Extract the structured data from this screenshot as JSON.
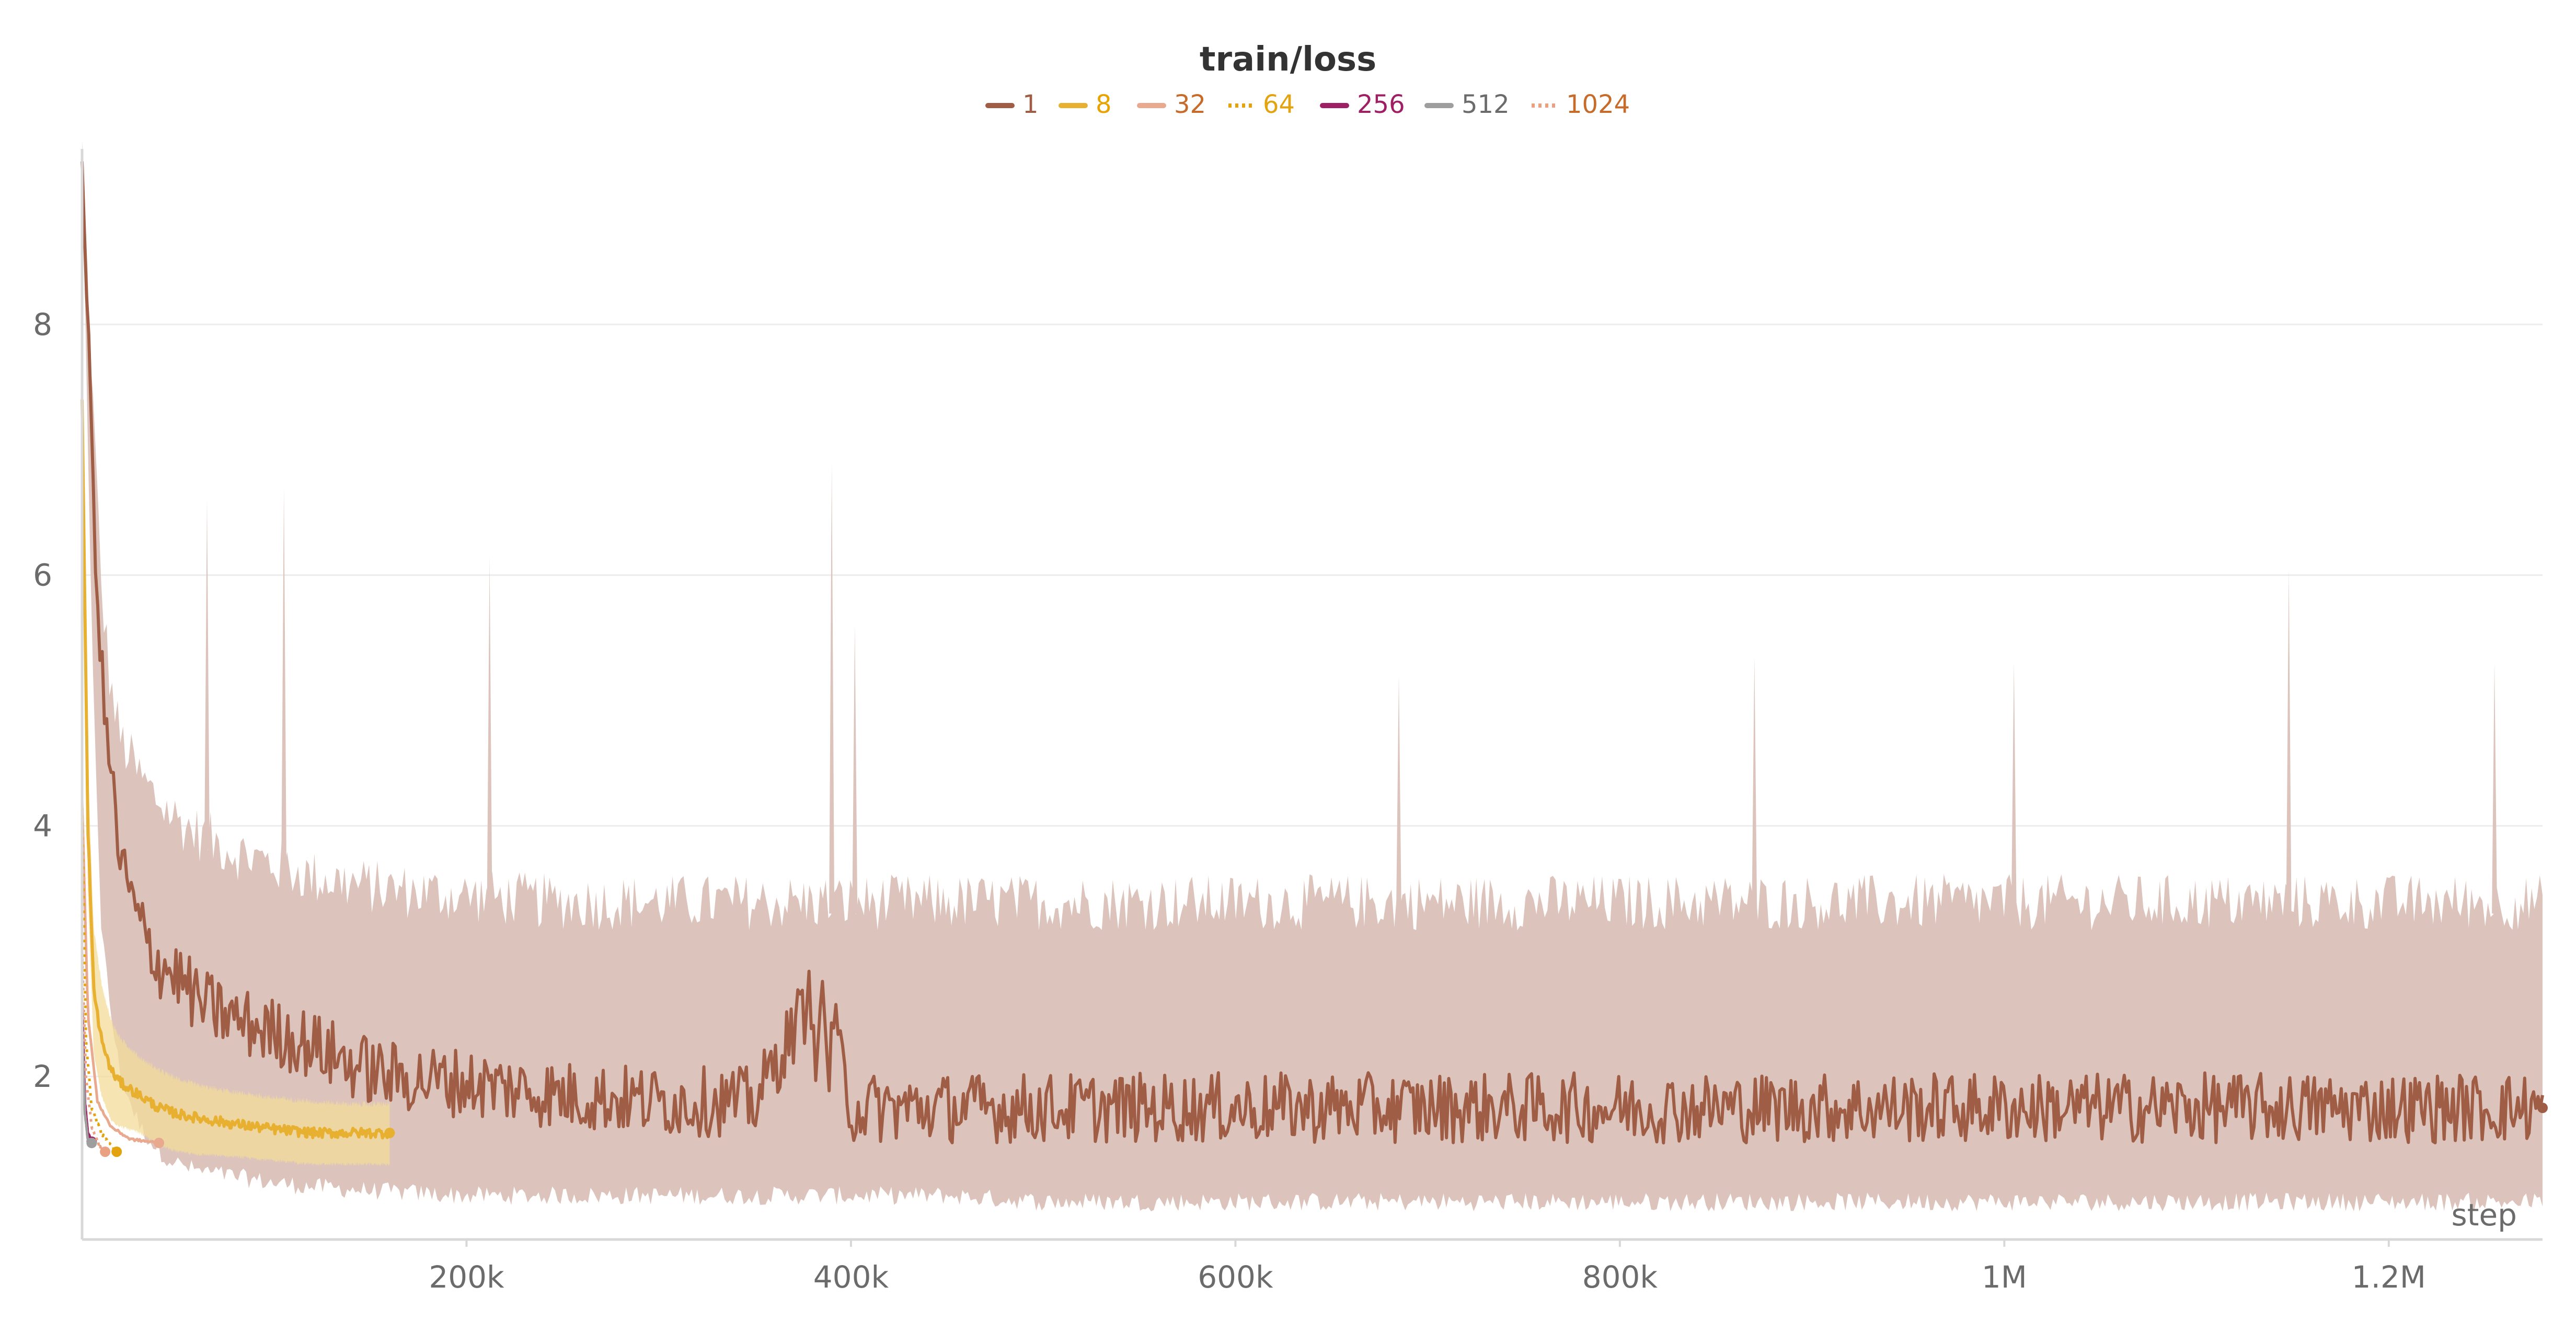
{
  "chart_data": {
    "type": "line",
    "title": "train/loss",
    "xlabel": "step",
    "ylabel": "",
    "xlim": [
      0,
      1280000
    ],
    "ylim": [
      0.7,
      9.4
    ],
    "x_ticks": [
      200000,
      400000,
      600000,
      800000,
      1000000,
      1200000
    ],
    "x_tick_labels": [
      "200k",
      "400k",
      "600k",
      "800k",
      "1M",
      "1.2M"
    ],
    "y_ticks": [
      2,
      4,
      6,
      8
    ],
    "y_tick_labels": [
      "2",
      "4",
      "6",
      "8"
    ],
    "grid": "horizontal",
    "legend": "top-center",
    "series": [
      {
        "name": "1",
        "color": "#a05d45",
        "dash": "solid",
        "band_color": "#dcc4bc",
        "x": [
          0,
          5000,
          10000,
          15000,
          20000,
          30000,
          40000,
          50000,
          60000,
          80000,
          100000,
          120000,
          140000,
          160000,
          200000,
          250000,
          300000,
          350000,
          385000,
          400000,
          450000,
          500000,
          600000,
          700000,
          800000,
          900000,
          1000000,
          1100000,
          1200000,
          1280000
        ],
        "y": [
          9.3,
          7.0,
          5.2,
          4.4,
          3.7,
          3.2,
          2.9,
          2.8,
          2.6,
          2.45,
          2.35,
          2.25,
          2.1,
          2.0,
          1.95,
          1.85,
          1.8,
          1.8,
          2.8,
          1.75,
          1.75,
          1.75,
          1.75,
          1.75,
          1.75,
          1.75,
          1.75,
          1.75,
          1.75,
          1.75
        ],
        "band_upper": [
          9.3,
          7.5,
          5.8,
          5.0,
          4.6,
          4.3,
          4.1,
          3.95,
          3.85,
          3.7,
          3.6,
          3.5,
          3.45,
          3.4,
          3.35,
          3.3,
          3.3,
          3.3,
          3.3,
          3.3,
          3.3,
          3.3,
          3.3,
          3.3,
          3.3,
          3.3,
          3.3,
          3.3,
          3.3,
          3.3
        ],
        "band_lower": [
          9.3,
          5.5,
          3.2,
          2.5,
          2.0,
          1.6,
          1.4,
          1.3,
          1.25,
          1.2,
          1.15,
          1.12,
          1.1,
          1.08,
          1.05,
          1.05,
          1.05,
          1.05,
          1.05,
          1.05,
          1.05,
          1.0,
          1.0,
          1.0,
          1.0,
          1.0,
          1.0,
          1.0,
          1.0,
          1.0
        ],
        "spikes": [
          [
            65000,
            6.6
          ],
          [
            105000,
            6.7
          ],
          [
            212000,
            6.15
          ],
          [
            390000,
            6.9
          ],
          [
            402000,
            5.6
          ],
          [
            685000,
            5.2
          ],
          [
            870000,
            5.35
          ],
          [
            1005000,
            5.3
          ],
          [
            1148000,
            6.05
          ],
          [
            1255000,
            5.3
          ]
        ]
      },
      {
        "name": "8",
        "color": "#e8b030",
        "dash": "solid",
        "band_color": "#f3dc9a",
        "x": [
          0,
          3000,
          6000,
          10000,
          15000,
          20000,
          30000,
          40000,
          50000,
          60000,
          80000,
          100000,
          120000,
          140000,
          160000
        ],
        "y": [
          7.4,
          4.0,
          2.7,
          2.3,
          2.05,
          1.95,
          1.85,
          1.75,
          1.7,
          1.67,
          1.62,
          1.58,
          1.55,
          1.55,
          1.55
        ],
        "band_upper": [
          7.4,
          4.5,
          3.2,
          2.75,
          2.45,
          2.3,
          2.15,
          2.05,
          1.98,
          1.93,
          1.87,
          1.83,
          1.8,
          1.78,
          1.78
        ],
        "band_lower": [
          7.4,
          3.5,
          2.2,
          1.85,
          1.65,
          1.6,
          1.55,
          1.45,
          1.4,
          1.38,
          1.36,
          1.33,
          1.3,
          1.3,
          1.3
        ]
      },
      {
        "name": "32",
        "color": "#e9a98f",
        "dash": "solid",
        "x": [
          0,
          3000,
          8000,
          15000,
          25000,
          35000,
          40000
        ],
        "y": [
          4.2,
          2.5,
          1.8,
          1.6,
          1.5,
          1.48,
          1.47
        ]
      },
      {
        "name": "64",
        "color": "#e3a30f",
        "dash": "dotted",
        "x": [
          0,
          2000,
          5000,
          10000,
          15000,
          18000
        ],
        "y": [
          4.2,
          2.3,
          1.75,
          1.55,
          1.45,
          1.4
        ]
      },
      {
        "name": "256",
        "color": "#9e1f63",
        "dash": "solid",
        "x": [
          0,
          1500,
          3000,
          5000
        ],
        "y": [
          2.6,
          1.8,
          1.55,
          1.48
        ]
      },
      {
        "name": "512",
        "color": "#9e9e9e",
        "dash": "solid",
        "x": [
          0,
          1500,
          3000,
          5000
        ],
        "y": [
          2.4,
          1.7,
          1.5,
          1.47
        ]
      },
      {
        "name": "1024",
        "color": "#e9a182",
        "dash": "dotted",
        "x": [
          0,
          2000,
          5000,
          9000,
          12000
        ],
        "y": [
          3.0,
          2.0,
          1.6,
          1.45,
          1.4
        ]
      }
    ],
    "legend_text_colors": [
      "#a05d45",
      "#e8a300",
      "#c76b2a",
      "#e3a30f",
      "#9e1f63",
      "#6b6b6b",
      "#c76b2a"
    ]
  }
}
